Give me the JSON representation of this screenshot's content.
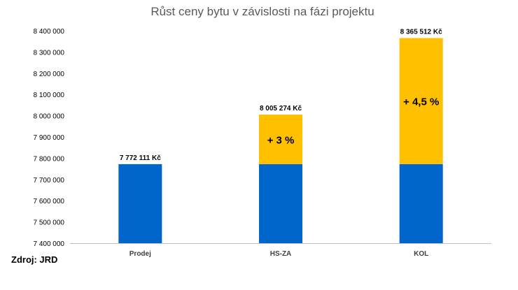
{
  "chart_data": {
    "type": "bar",
    "stacked": true,
    "title": "Růst ceny bytu v závislosti na fázi projektu",
    "categories": [
      "Prodej",
      "HS-ZA",
      "KOL"
    ],
    "base_values": [
      7772111,
      7772111,
      7772111
    ],
    "increase_values": [
      0,
      233163,
      593401
    ],
    "totals": [
      7772111,
      8005274,
      8365512
    ],
    "data_labels": [
      "7 772 111 Kč",
      "8 005 274 Kč",
      "8 365 512 Kč"
    ],
    "increase_labels": [
      "",
      "+ 3 %",
      "+ 4,5 %"
    ],
    "ylim": [
      7400000,
      8400000
    ],
    "yticks": [
      7400000,
      7500000,
      7600000,
      7700000,
      7800000,
      7900000,
      8000000,
      8100000,
      8200000,
      8300000,
      8400000
    ],
    "ytick_labels": [
      "7 400 000",
      "7 500 000",
      "7 600 000",
      "7 700 000",
      "7 800 000",
      "7 900 000",
      "8 000 000",
      "8 100 000",
      "8 200 000",
      "8 300 000",
      "8 400 000"
    ],
    "colors": {
      "base": "#0066cc",
      "increase": "#ffc000",
      "axis": "#bfbfbf"
    },
    "grid": false,
    "legend": "none"
  },
  "source": "Zdroj: JRD"
}
